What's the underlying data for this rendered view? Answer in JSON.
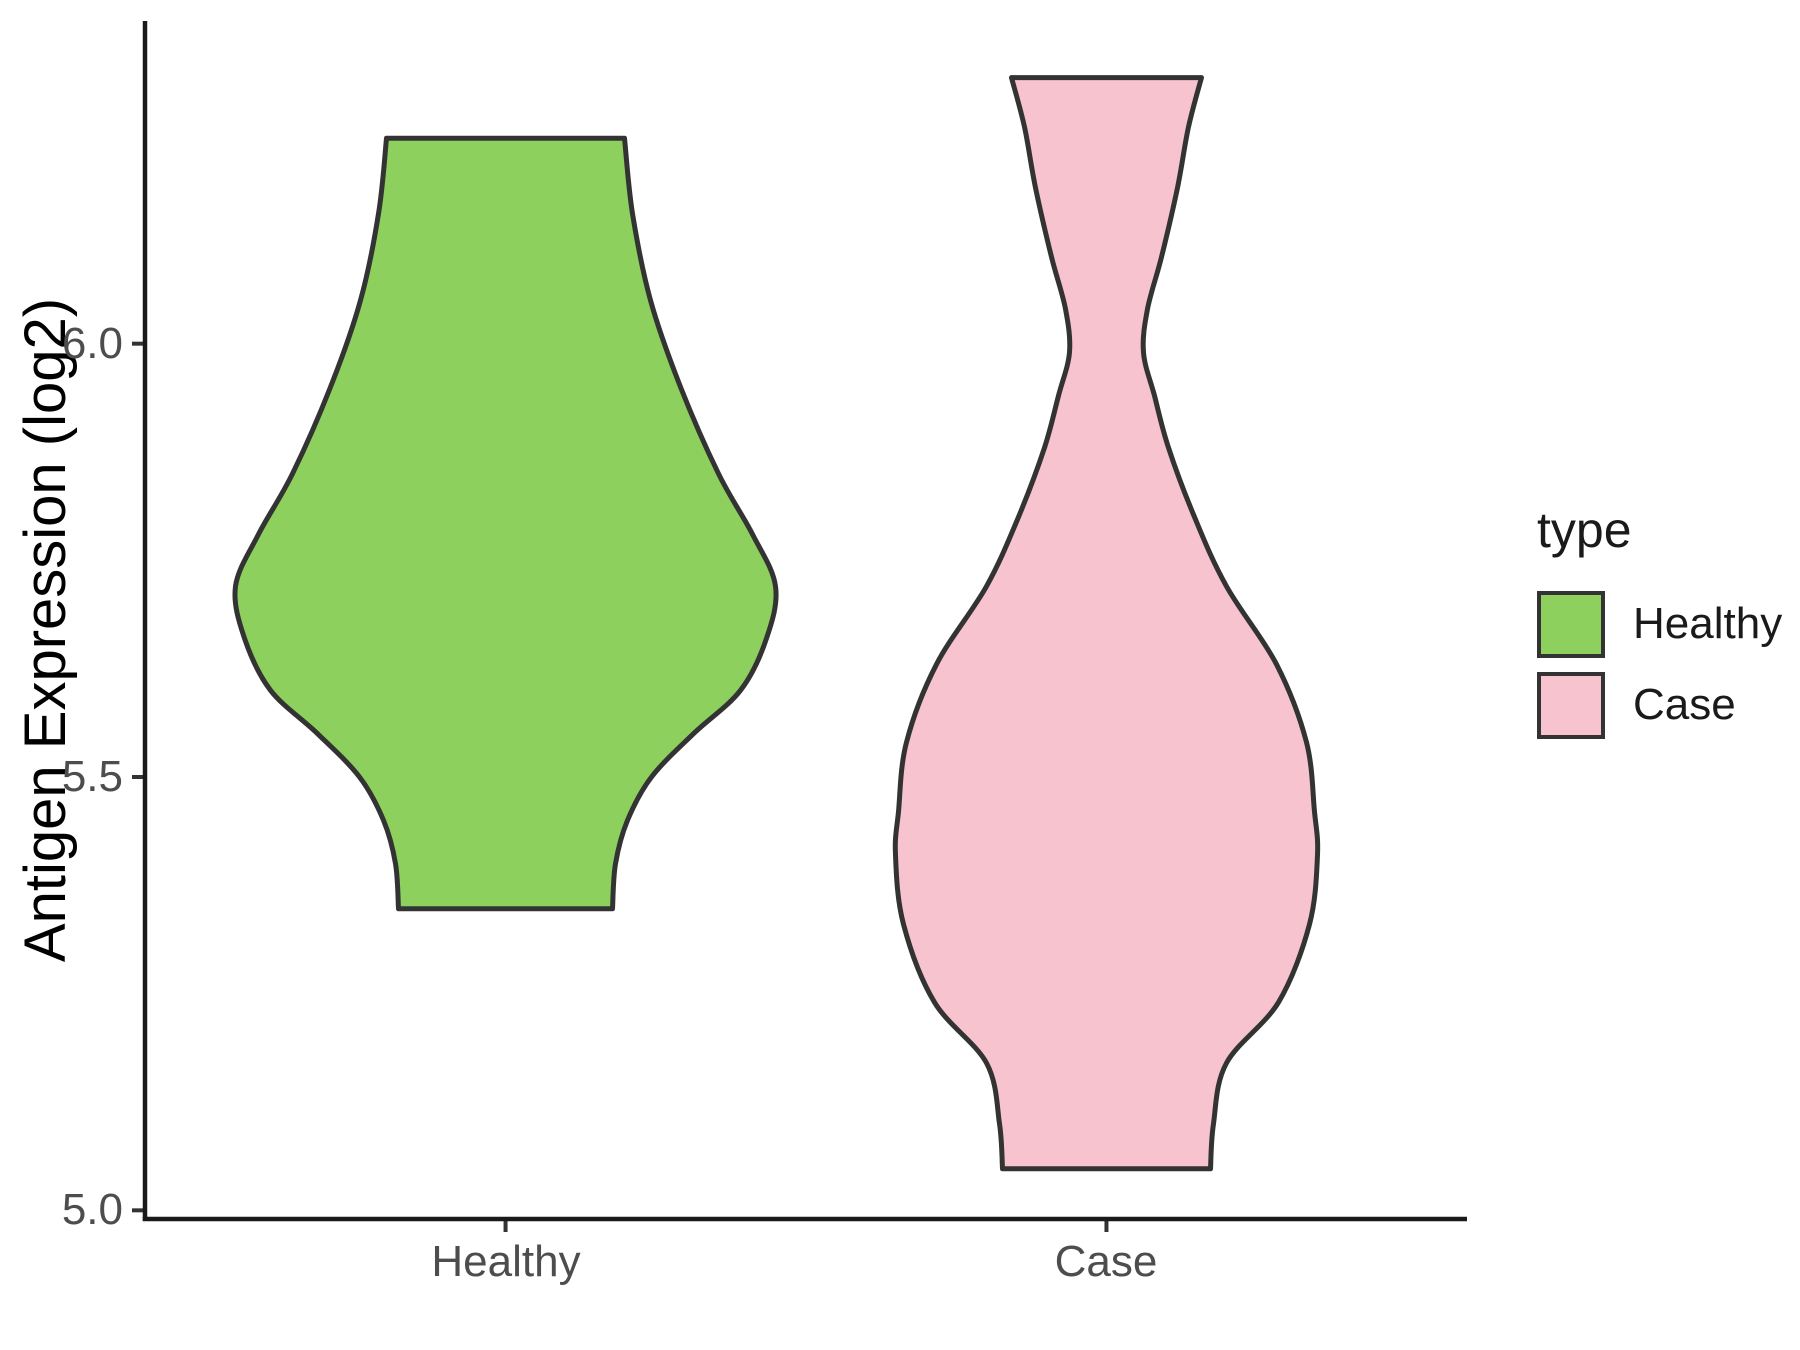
{
  "axes": {
    "y": {
      "title": "Antigen Expression (log2)",
      "tick_labels": [
        "5.0",
        "5.5",
        "6.0"
      ]
    },
    "x": {
      "tick_labels": [
        "Healthy",
        "Case"
      ]
    }
  },
  "legend": {
    "title": "type",
    "entries": [
      {
        "label": "Healthy",
        "color": "#8ED05E"
      },
      {
        "label": "Case",
        "color": "#F7C3CE"
      }
    ]
  },
  "style": {
    "violin_stroke": "#333333",
    "axis_line_color": "#1a1a1a",
    "tick_color": "#333333",
    "tick_text_color": "#4d4d4d",
    "background": "#ffffff"
  },
  "chart_data": {
    "type": "violin",
    "title": "",
    "xlabel": "",
    "ylabel": "Antigen Expression (log2)",
    "categories": [
      "Healthy",
      "Case"
    ],
    "ylim": [
      4.99,
      6.37
    ],
    "yticks": [
      5.0,
      5.5,
      6.0
    ],
    "grid": false,
    "legend_position": "right",
    "series": [
      {
        "name": "Healthy",
        "fill": "#8ED05E",
        "stroke": "#333333",
        "data_range": [
          5.35,
          6.24
        ],
        "density_peak_at": 5.72,
        "shape": "truncated at both ends; bulges widest near 5.72, flat top at 6.24, flat bottom at 5.35",
        "profile_value_halfwidth": [
          [
            6.237,
            119
          ],
          [
            6.15,
            127
          ],
          [
            6.05,
            145
          ],
          [
            5.95,
            175
          ],
          [
            5.85,
            213
          ],
          [
            5.78,
            247
          ],
          [
            5.72,
            270
          ],
          [
            5.66,
            261
          ],
          [
            5.6,
            235
          ],
          [
            5.55,
            188
          ],
          [
            5.5,
            146
          ],
          [
            5.45,
            122
          ],
          [
            5.4,
            110
          ],
          [
            5.348,
            107
          ]
        ]
      },
      {
        "name": "Case",
        "fill": "#F7C3CE",
        "stroke": "#333333",
        "data_range": [
          5.05,
          6.31
        ],
        "density_peak_at": 5.42,
        "shape": "bimodal: small lobe at top (6.31), narrow neck near 6.0, large bulge widest near 5.42, flat bottom at 5.05",
        "profile_value_halfwidth": [
          [
            6.307,
            95
          ],
          [
            6.25,
            82
          ],
          [
            6.18,
            71
          ],
          [
            6.1,
            55
          ],
          [
            6.04,
            41
          ],
          [
            5.99,
            37
          ],
          [
            5.94,
            48
          ],
          [
            5.88,
            62
          ],
          [
            5.8,
            88
          ],
          [
            5.72,
            120
          ],
          [
            5.63,
            170
          ],
          [
            5.54,
            200
          ],
          [
            5.46,
            208
          ],
          [
            5.41,
            211
          ],
          [
            5.33,
            203
          ],
          [
            5.24,
            172
          ],
          [
            5.17,
            120
          ],
          [
            5.1,
            107
          ],
          [
            5.048,
            104
          ]
        ]
      }
    ]
  }
}
